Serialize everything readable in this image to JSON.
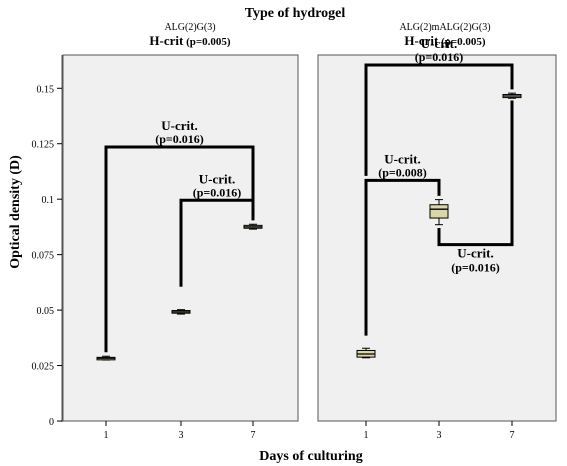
{
  "chart_data": {
    "type": "boxplot",
    "title": "Type of hydrogel",
    "xlabel": "Days of culturing",
    "ylabel": "Optical density (D)",
    "ylim": [
      0,
      0.165
    ],
    "y_ticks": [
      {
        "value": 0,
        "label": "0"
      },
      {
        "value": 0.025,
        "label": "0.025"
      },
      {
        "value": 0.05,
        "label": "0.05"
      },
      {
        "value": 0.075,
        "label": "0.075"
      },
      {
        "value": 0.1,
        "label": "0.1"
      },
      {
        "value": 0.125,
        "label": "0.125"
      },
      {
        "value": 0.15,
        "label": "0.15"
      }
    ],
    "categories": [
      "1",
      "3",
      "7"
    ],
    "grid": false,
    "colors": {
      "box": "#dbd6a8",
      "panel": "#f0f0f0",
      "line": "#000000"
    },
    "panels": [
      {
        "name": "ALG(2)G(3)",
        "test_bold": "H-crit",
        "test_rest": " (p=0.005)",
        "boxes": [
          {
            "x": "1",
            "min": 0.0275,
            "q1": 0.0278,
            "median": 0.0283,
            "q3": 0.0287,
            "max": 0.0292
          },
          {
            "x": "3",
            "min": 0.0482,
            "q1": 0.0486,
            "median": 0.0492,
            "q3": 0.0498,
            "max": 0.0502
          },
          {
            "x": "7",
            "min": 0.0865,
            "q1": 0.0869,
            "median": 0.0875,
            "q3": 0.0882,
            "max": 0.0887
          }
        ],
        "comparisons": [
          {
            "from": "1",
            "to": "7",
            "from_y": 0.031,
            "to_y": 0.0905,
            "bar_y": 0.1235,
            "line1": "U-crit.",
            "line2": "(p=0.016)",
            "side": "above"
          },
          {
            "from": "3",
            "to": "7",
            "from_y": 0.0605,
            "to_y": 0.0905,
            "bar_y": 0.0995,
            "line1": "U-crit.",
            "line2": "(p=0.016)",
            "side": "above"
          }
        ]
      },
      {
        "name": "ALG(2)mALG(2)G(3)",
        "test_bold": "H-crit",
        "test_rest": " (p=0.005)",
        "boxes": [
          {
            "x": "1",
            "min": 0.0285,
            "q1": 0.0288,
            "median": 0.0302,
            "q3": 0.0318,
            "max": 0.0328
          },
          {
            "x": "3",
            "min": 0.0885,
            "q1": 0.0915,
            "median": 0.0955,
            "q3": 0.0975,
            "max": 0.0998
          },
          {
            "x": "7",
            "min": 0.1455,
            "q1": 0.1458,
            "median": 0.1465,
            "q3": 0.1472,
            "max": 0.1478
          }
        ],
        "comparisons": [
          {
            "from": "1",
            "to": "7",
            "from_y": 0.1105,
            "to_y": 0.1495,
            "bar_y": 0.1605,
            "line1": "U-crit.",
            "line2": "(p=0.016)",
            "side": "above"
          },
          {
            "from": "1",
            "to": "3",
            "from_y": 0.0385,
            "to_y": 0.1015,
            "bar_y": 0.1085,
            "line1": "U-crit.",
            "line2": "(p=0.008)",
            "side": "above"
          },
          {
            "from": "3",
            "to": "7",
            "from_y": 0.087,
            "to_y": 0.1445,
            "bar_y": 0.0795,
            "line1": "U-crit.",
            "line2": "(p=0.016)",
            "side": "below"
          }
        ]
      }
    ]
  }
}
